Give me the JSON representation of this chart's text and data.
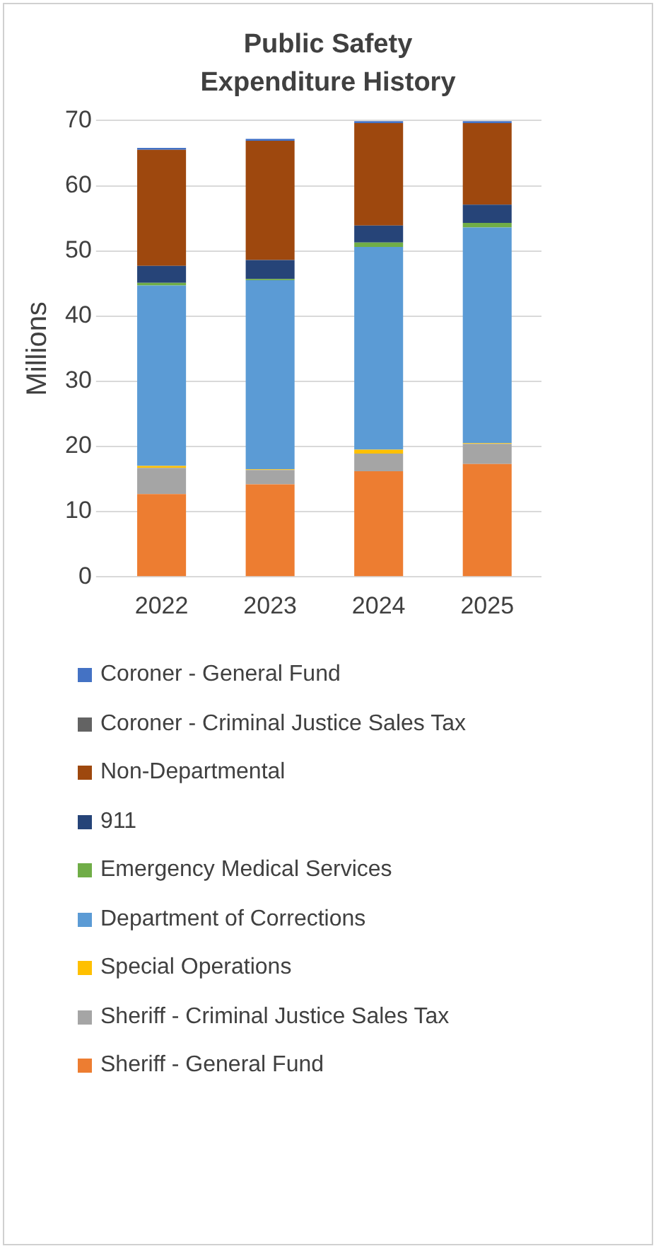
{
  "chart_data": {
    "type": "bar",
    "title": "Public Safety Expenditure History",
    "ylabel": "Millions",
    "categories": [
      "2022",
      "2023",
      "2024",
      "2025"
    ],
    "stacked": true,
    "ylim": [
      0,
      70
    ],
    "yticks": [
      0,
      10,
      20,
      30,
      40,
      50,
      60,
      70
    ],
    "grid": "y",
    "legend": "bottom",
    "series": [
      {
        "name": "Sheriff - General Fund",
        "color": "#ed7d31",
        "values": [
          12.7,
          14.2,
          16.2,
          17.3
        ]
      },
      {
        "name": "Sheriff - Criminal Justice Sales Tax",
        "color": "#a5a5a5",
        "values": [
          4.0,
          2.2,
          2.7,
          3.1
        ]
      },
      {
        "name": "Special Operations",
        "color": "#ffc000",
        "values": [
          0.3,
          0.1,
          0.6,
          0.1
        ]
      },
      {
        "name": "Department of Corrections",
        "color": "#5b9bd5",
        "values": [
          27.7,
          29.0,
          31.1,
          33.1
        ]
      },
      {
        "name": "Emergency Medical Services",
        "color": "#70ad47",
        "values": [
          0.4,
          0.2,
          0.7,
          0.7
        ]
      },
      {
        "name": "911",
        "color": "#264478",
        "values": [
          2.6,
          2.9,
          2.6,
          2.8
        ]
      },
      {
        "name": "Non-Departmental",
        "color": "#9e480e",
        "values": [
          17.8,
          18.3,
          15.7,
          12.5
        ]
      },
      {
        "name": "Coroner - Criminal Justice Sales Tax",
        "color": "#636363",
        "values": [
          0,
          0,
          0,
          0
        ]
      },
      {
        "name": "Coroner - General Fund",
        "color": "#4472c4",
        "values": [
          0.3,
          0.3,
          0.3,
          0.3
        ]
      }
    ]
  }
}
